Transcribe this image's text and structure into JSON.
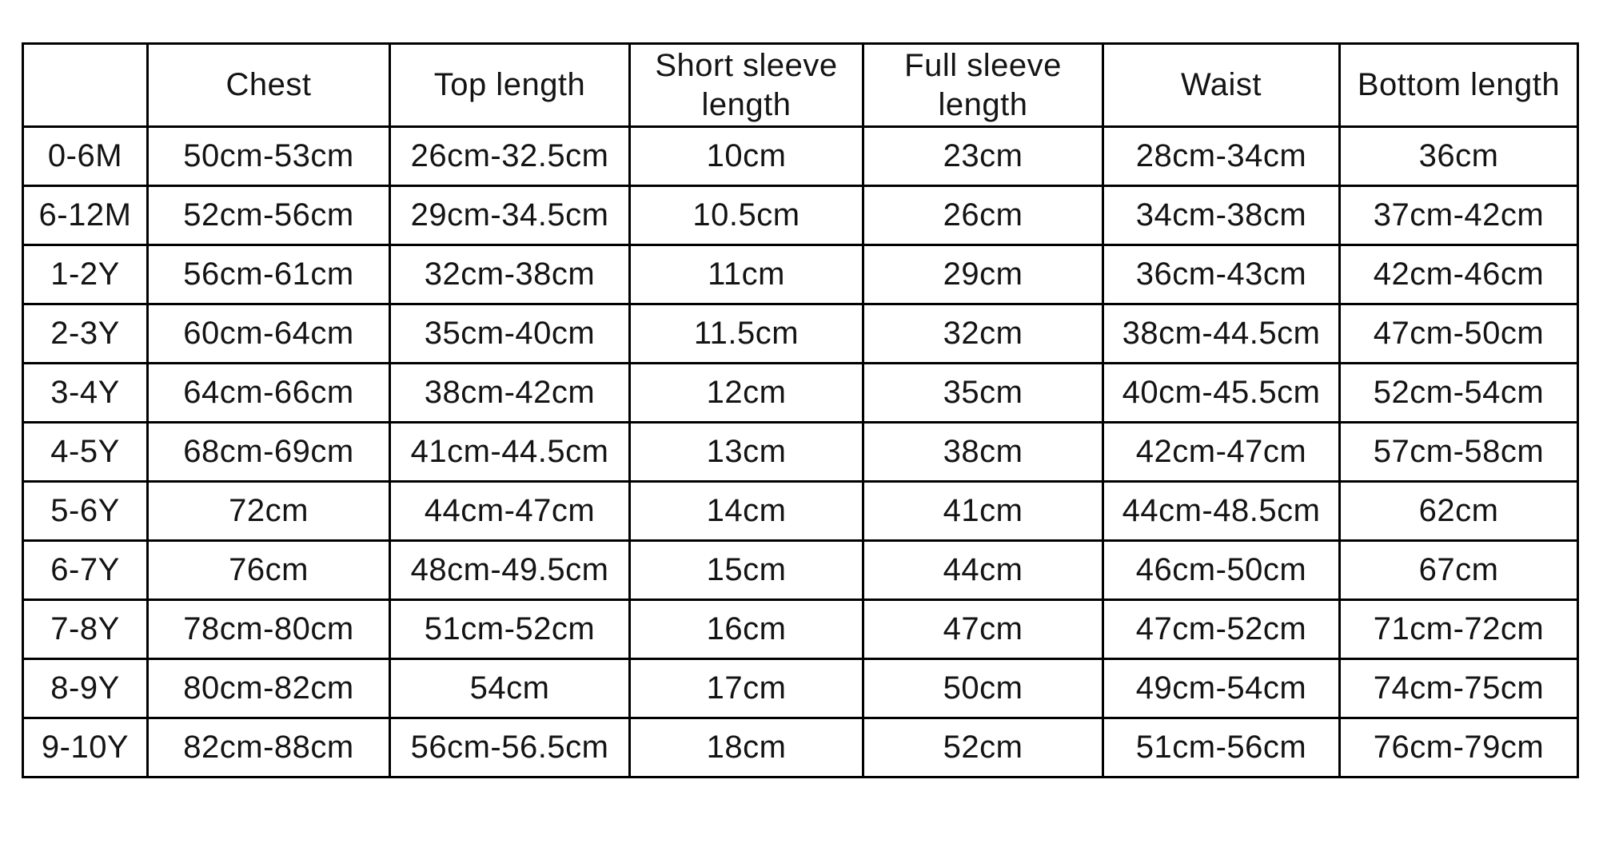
{
  "table": {
    "columns": [
      {
        "key": "size",
        "label": ""
      },
      {
        "key": "chest",
        "label": "Chest"
      },
      {
        "key": "top-length",
        "label": "Top length"
      },
      {
        "key": "short-sleeve-length",
        "label": "Short sleeve length"
      },
      {
        "key": "full-sleeve-length",
        "label": "Full sleeve length"
      },
      {
        "key": "waist",
        "label": "Waist"
      },
      {
        "key": "bottom-length",
        "label": "Bottom length"
      }
    ],
    "rows": [
      [
        "0-6M",
        "50cm-53cm",
        "26cm-32.5cm",
        "10cm",
        "23cm",
        "28cm-34cm",
        "36cm"
      ],
      [
        "6-12M",
        "52cm-56cm",
        "29cm-34.5cm",
        "10.5cm",
        "26cm",
        "34cm-38cm",
        "37cm-42cm"
      ],
      [
        "1-2Y",
        "56cm-61cm",
        "32cm-38cm",
        "11cm",
        "29cm",
        "36cm-43cm",
        "42cm-46cm"
      ],
      [
        "2-3Y",
        "60cm-64cm",
        "35cm-40cm",
        "11.5cm",
        "32cm",
        "38cm-44.5cm",
        "47cm-50cm"
      ],
      [
        "3-4Y",
        "64cm-66cm",
        "38cm-42cm",
        "12cm",
        "35cm",
        "40cm-45.5cm",
        "52cm-54cm"
      ],
      [
        "4-5Y",
        "68cm-69cm",
        "41cm-44.5cm",
        "13cm",
        "38cm",
        "42cm-47cm",
        "57cm-58cm"
      ],
      [
        "5-6Y",
        "72cm",
        "44cm-47cm",
        "14cm",
        "41cm",
        "44cm-48.5cm",
        "62cm"
      ],
      [
        "6-7Y",
        "76cm",
        "48cm-49.5cm",
        "15cm",
        "44cm",
        "46cm-50cm",
        "67cm"
      ],
      [
        "7-8Y",
        "78cm-80cm",
        "51cm-52cm",
        "16cm",
        "47cm",
        "47cm-52cm",
        "71cm-72cm"
      ],
      [
        "8-9Y",
        "80cm-82cm",
        "54cm",
        "17cm",
        "50cm",
        "49cm-54cm",
        "74cm-75cm"
      ],
      [
        "9-10Y",
        "82cm-88cm",
        "56cm-56.5cm",
        "18cm",
        "52cm",
        "51cm-56cm",
        "76cm-79cm"
      ]
    ],
    "border_color": "#000000",
    "background_color": "#ffffff",
    "text_color": "#141414"
  }
}
